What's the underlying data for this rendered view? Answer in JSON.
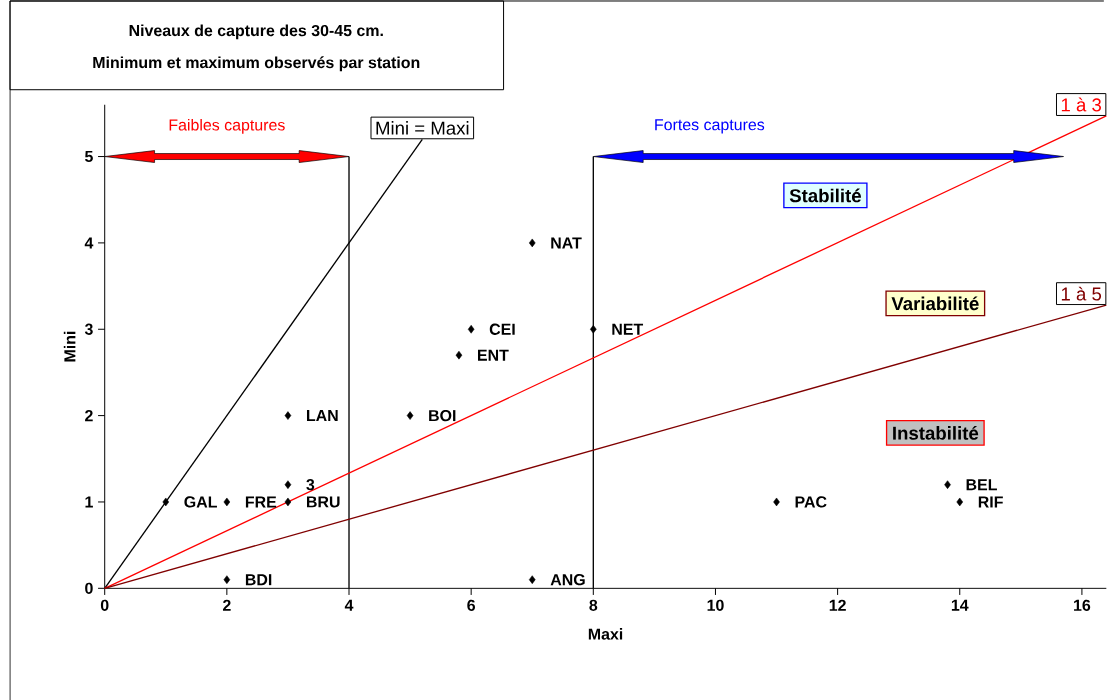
{
  "chart_data": {
    "type": "scatter",
    "title": "Niveaux de capture des 30-45 cm.",
    "subtitle": "Minimum et maximum observés par station",
    "xlabel": "Maxi",
    "ylabel": "Mini",
    "xlim": [
      0,
      16.4
    ],
    "ylim": [
      0,
      5.6
    ],
    "xticks": [
      0,
      2,
      4,
      6,
      8,
      10,
      12,
      14,
      16
    ],
    "yticks": [
      0,
      1,
      2,
      3,
      4,
      5
    ],
    "grid": false,
    "series": [
      {
        "color": "#000000",
        "marker": "diamond",
        "x": [
          1,
          2,
          3,
          3,
          3,
          2,
          5,
          5.8,
          6,
          7,
          7,
          8,
          11,
          13.8,
          14
        ],
        "values": [
          1,
          1,
          1,
          1.2,
          2,
          0.1,
          2,
          2.7,
          3,
          4,
          0.1,
          3,
          1,
          1.2,
          1
        ]
      },
      {
        "type": "line",
        "name": "Mini = Maxi",
        "color": "#000000",
        "marker": "none",
        "x": [
          0,
          5.2
        ],
        "values": [
          0,
          5.2
        ]
      },
      {
        "type": "line",
        "name": "1 à 3",
        "color": "#ff0000",
        "marker": "none",
        "x": [
          0,
          16.4
        ],
        "values": [
          0,
          5.47
        ]
      },
      {
        "type": "line",
        "name": "1 à 5",
        "color": "#800000",
        "marker": "none",
        "x": [
          0,
          16.4
        ],
        "values": [
          0,
          3.28
        ]
      }
    ],
    "ref_lines": [
      {
        "axis": "x",
        "value": 4,
        "color": "#000000"
      },
      {
        "axis": "x",
        "value": 8,
        "color": "#000000"
      }
    ],
    "annotations": [
      "Faibles captures",
      "Fortes captures",
      "Stabilité",
      "Variabilité",
      "Instabilité",
      {
        "text": "GAL",
        "x": 1,
        "y": 1
      },
      {
        "text": "FRE",
        "x": 2,
        "y": 1
      },
      {
        "text": "BRU",
        "x": 3,
        "y": 1
      },
      {
        "text": "3",
        "x": 3,
        "y": 1.2
      },
      {
        "text": "LAN",
        "x": 3,
        "y": 2
      },
      {
        "text": "BDI",
        "x": 2,
        "y": 0.1
      },
      {
        "text": "BOI",
        "x": 5,
        "y": 2
      },
      {
        "text": "ENT",
        "x": 5.8,
        "y": 2.7
      },
      {
        "text": "CEI",
        "x": 6,
        "y": 3
      },
      {
        "text": "NAT",
        "x": 7,
        "y": 4
      },
      {
        "text": "ANG",
        "x": 7,
        "y": 0.1
      },
      {
        "text": "NET",
        "x": 8,
        "y": 3
      },
      {
        "text": "PAC",
        "x": 11,
        "y": 1
      },
      {
        "text": "BEL",
        "x": 13.8,
        "y": 1.2
      },
      {
        "text": "RIF",
        "x": 14,
        "y": 1
      }
    ]
  }
}
